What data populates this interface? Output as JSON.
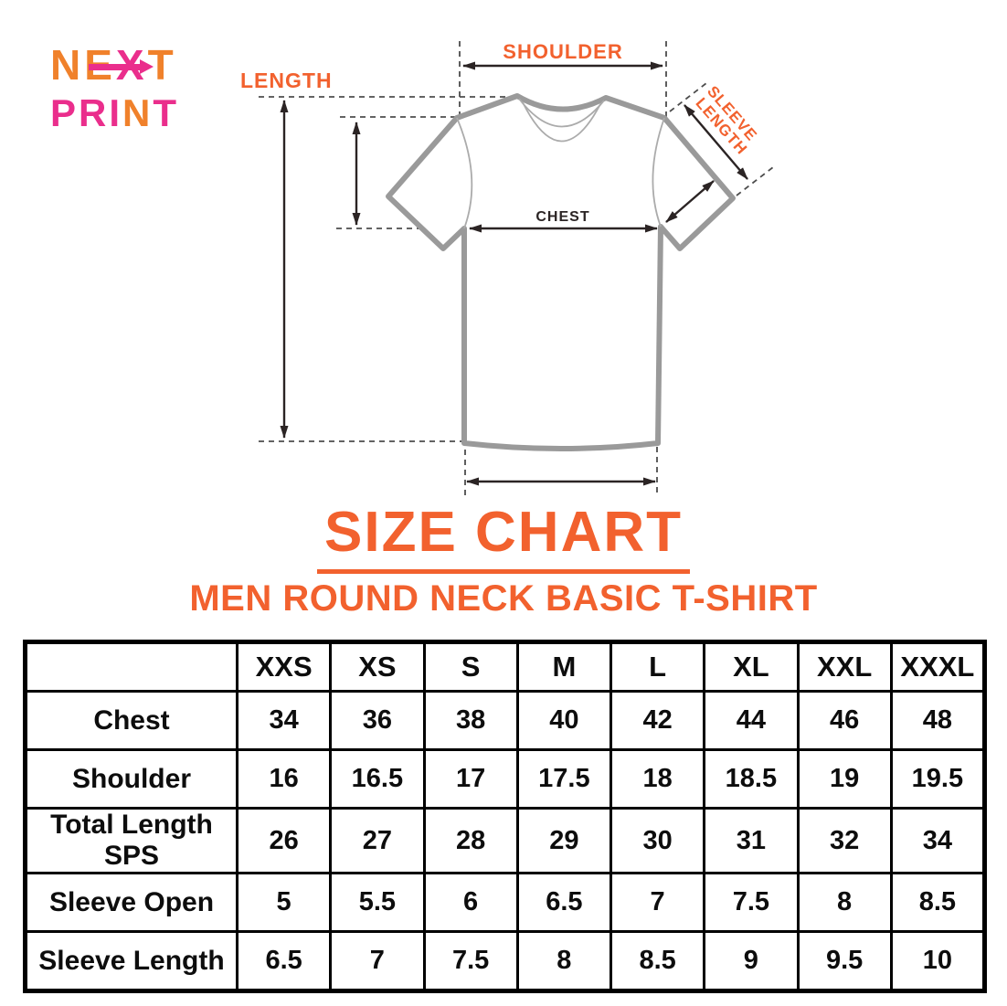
{
  "theme": {
    "background": "#ffffff",
    "orange": "#F2612E",
    "logo_orange": "#F0812B",
    "pink": "#EA2E8C",
    "shirt_gray": "#9A9A9A",
    "seam_gray": "#ABABAB",
    "arrow_dark": "#2B2424",
    "dash_gray": "#4D4D4D",
    "table_border": "#000000",
    "table_text": "#0D0D0D"
  },
  "logo": {
    "line1": {
      "text": "NEXT",
      "letters": [
        {
          "char": "N",
          "color": "#F0812B"
        },
        {
          "char": "E",
          "color": "#F0812B"
        },
        {
          "char": "X",
          "color": "#EA2E8C"
        },
        {
          "char": "T",
          "color": "#F0812B"
        }
      ]
    },
    "line2": {
      "text": "PRINT",
      "letters": [
        {
          "char": "P",
          "color": "#EA2E8C"
        },
        {
          "char": "R",
          "color": "#EA2E8C"
        },
        {
          "char": "I",
          "color": "#EA2E8C"
        },
        {
          "char": "N",
          "color": "#F0812B"
        },
        {
          "char": "T",
          "color": "#EA2E8C"
        }
      ]
    }
  },
  "diagram": {
    "labels": {
      "shoulder": "SHOULDER",
      "length": "LENGTH",
      "chest": "CHEST",
      "sleeve_line1": "SLEEVE",
      "sleeve_line2": "LENGTH"
    }
  },
  "heading": {
    "title": "SIZE CHART",
    "subtitle": "MEN ROUND NECK BASIC T-SHIRT"
  },
  "size_table": {
    "corner_label": "",
    "columns": [
      "XXS",
      "XS",
      "S",
      "M",
      "L",
      "XL",
      "XXL",
      "XXXL"
    ],
    "rows": [
      {
        "label": "Chest",
        "values": [
          "34",
          "36",
          "38",
          "40",
          "42",
          "44",
          "46",
          "48"
        ]
      },
      {
        "label": "Shoulder",
        "values": [
          "16",
          "16.5",
          "17",
          "17.5",
          "18",
          "18.5",
          "19",
          "19.5"
        ]
      },
      {
        "label": "Total Length SPS",
        "values": [
          "26",
          "27",
          "28",
          "29",
          "30",
          "31",
          "32",
          "34"
        ]
      },
      {
        "label": "Sleeve Open",
        "values": [
          "5",
          "5.5",
          "6",
          "6.5",
          "7",
          "7.5",
          "8",
          "8.5"
        ]
      },
      {
        "label": "Sleeve Length",
        "values": [
          "6.5",
          "7",
          "7.5",
          "8",
          "8.5",
          "9",
          "9.5",
          "10"
        ]
      }
    ]
  }
}
